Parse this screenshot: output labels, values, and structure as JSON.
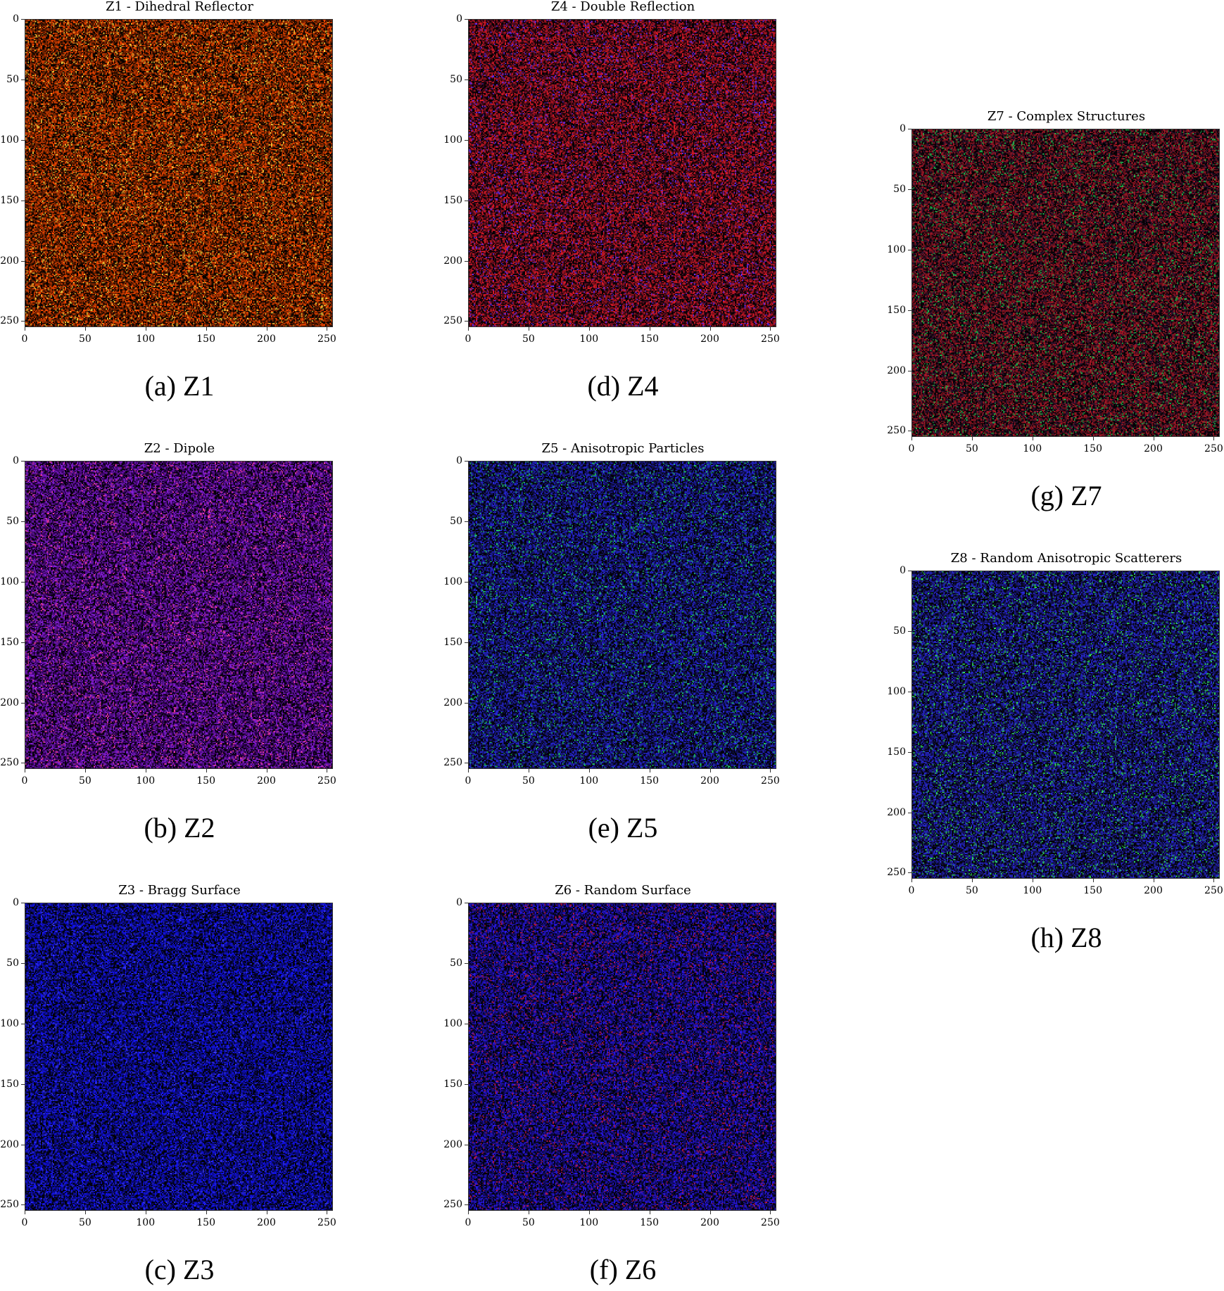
{
  "chart_data": [
    {
      "type": "heatmap",
      "title": "Z1 - Dihedral Reflector",
      "caption": "(a) Z1",
      "xticks": [
        "0",
        "50",
        "100",
        "150",
        "200",
        "250"
      ],
      "yticks": [
        "0",
        "50",
        "100",
        "150",
        "200",
        "250"
      ],
      "xlim": [
        0,
        255
      ],
      "ylim": [
        255,
        0
      ],
      "colors": {
        "base": "#ff4a00",
        "accent": "#ffd23a",
        "dim": "#3a1200"
      }
    },
    {
      "type": "heatmap",
      "title": "Z2 - Dipole",
      "caption": "(b) Z2",
      "xticks": [
        "0",
        "50",
        "100",
        "150",
        "200",
        "250"
      ],
      "yticks": [
        "0",
        "50",
        "100",
        "150",
        "200",
        "250"
      ],
      "xlim": [
        0,
        255
      ],
      "ylim": [
        255,
        0
      ],
      "colors": {
        "base": "#8a1ee0",
        "accent": "#ff3fb0",
        "dim": "#240040"
      }
    },
    {
      "type": "heatmap",
      "title": "Z3 - Bragg Surface",
      "caption": "(c) Z3",
      "xticks": [
        "0",
        "50",
        "100",
        "150",
        "200",
        "250"
      ],
      "yticks": [
        "0",
        "50",
        "100",
        "150",
        "200",
        "250"
      ],
      "xlim": [
        0,
        255
      ],
      "ylim": [
        255,
        0
      ],
      "colors": {
        "base": "#1414ff",
        "accent": "#3a3aff",
        "dim": "#060640"
      }
    },
    {
      "type": "heatmap",
      "title": "Z4 - Double Reflection",
      "caption": "(d) Z4",
      "xticks": [
        "0",
        "50",
        "100",
        "150",
        "200",
        "250"
      ],
      "yticks": [
        "0",
        "50",
        "100",
        "150",
        "200",
        "250"
      ],
      "xlim": [
        0,
        255
      ],
      "ylim": [
        255,
        0
      ],
      "colors": {
        "base": "#e01a2a",
        "accent": "#6a2cff",
        "dim": "#2a0614"
      }
    },
    {
      "type": "heatmap",
      "title": "Z5 - Anisotropic Particles",
      "caption": "(e) Z5",
      "xticks": [
        "0",
        "50",
        "100",
        "150",
        "200",
        "250"
      ],
      "yticks": [
        "0",
        "50",
        "100",
        "150",
        "200",
        "250"
      ],
      "xlim": [
        0,
        255
      ],
      "ylim": [
        255,
        0
      ],
      "colors": {
        "base": "#2828e0",
        "accent": "#20d070",
        "dim": "#0a0a30"
      }
    },
    {
      "type": "heatmap",
      "title": "Z6 - Random Surface",
      "caption": "(f) Z6",
      "xticks": [
        "0",
        "50",
        "100",
        "150",
        "200",
        "250"
      ],
      "yticks": [
        "0",
        "50",
        "100",
        "150",
        "200",
        "250"
      ],
      "xlim": [
        0,
        255
      ],
      "ylim": [
        255,
        0
      ],
      "colors": {
        "base": "#2a18f0",
        "accent": "#c01850",
        "dim": "#0a0638"
      }
    },
    {
      "type": "heatmap",
      "title": "Z7 - Complex Structures",
      "caption": "(g) Z7",
      "xticks": [
        "0",
        "50",
        "100",
        "150",
        "200",
        "250"
      ],
      "yticks": [
        "0",
        "50",
        "100",
        "150",
        "200",
        "250"
      ],
      "xlim": [
        0,
        255
      ],
      "ylim": [
        255,
        0
      ],
      "colors": {
        "base": "#b01a2a",
        "accent": "#20c050",
        "dim": "#1a0a1a"
      }
    },
    {
      "type": "heatmap",
      "title": "Z8 - Random Anisotropic Scatterers",
      "caption": "(h) Z8",
      "xticks": [
        "0",
        "50",
        "100",
        "150",
        "200",
        "250"
      ],
      "yticks": [
        "0",
        "50",
        "100",
        "150",
        "200",
        "250"
      ],
      "xlim": [
        0,
        255
      ],
      "ylim": [
        255,
        0
      ],
      "colors": {
        "base": "#2a2ae0",
        "accent": "#30e060",
        "dim": "#0c0c30"
      }
    }
  ]
}
